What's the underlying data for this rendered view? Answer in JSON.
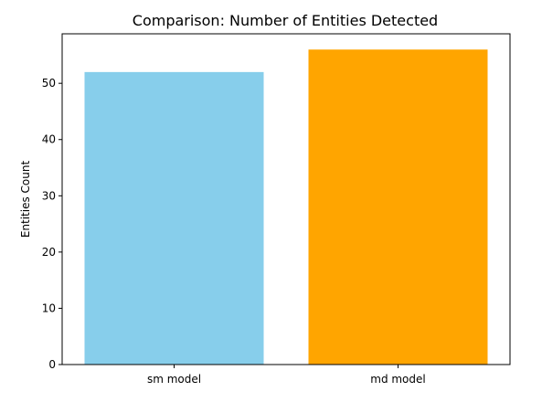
{
  "chart_data": {
    "type": "bar",
    "title": "Comparison: Number of Entities Detected",
    "xlabel": "",
    "ylabel": "Entities Count",
    "categories": [
      "sm model",
      "md model"
    ],
    "values": [
      52,
      56
    ],
    "bar_colors": [
      "#87ceeb",
      "#ffa500"
    ],
    "ylim": [
      0,
      58.8
    ],
    "yticks": [
      0,
      10,
      20,
      30,
      40,
      50
    ],
    "grid": false,
    "legend": "none"
  }
}
